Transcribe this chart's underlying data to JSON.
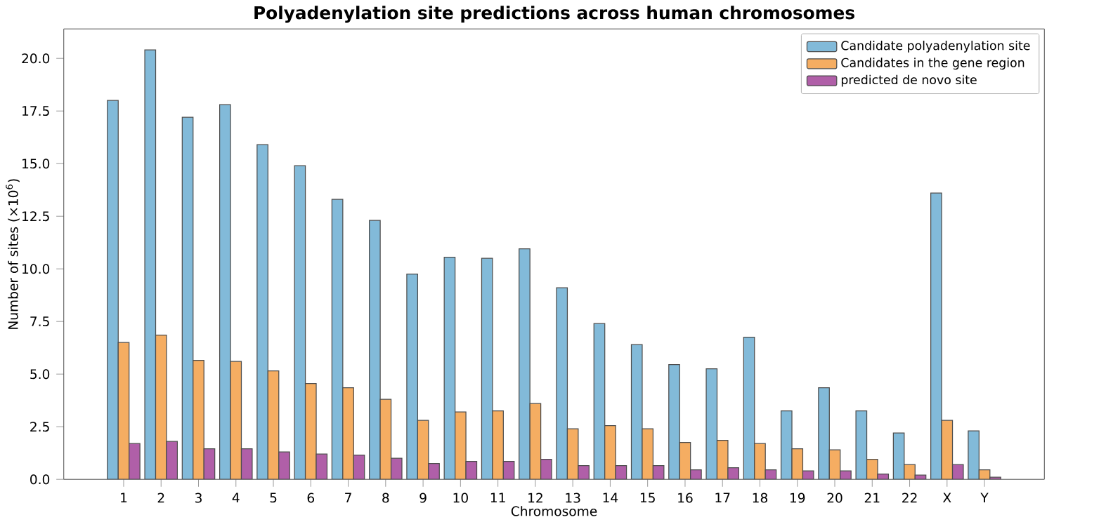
{
  "chart_data": {
    "type": "bar",
    "title": "Polyadenylation site predictions across human chromosomes",
    "xlabel": "Chromosome",
    "ylabel": "Number of sites (×10$^{6}$)",
    "categories": [
      "1",
      "2",
      "3",
      "4",
      "5",
      "6",
      "7",
      "8",
      "9",
      "10",
      "11",
      "12",
      "13",
      "14",
      "15",
      "16",
      "17",
      "18",
      "19",
      "20",
      "21",
      "22",
      "X",
      "Y"
    ],
    "series": [
      {
        "name": "Candidate polyadenylation site",
        "color": "#82bad9",
        "values": [
          18.0,
          20.4,
          17.2,
          17.8,
          15.9,
          14.9,
          13.3,
          12.3,
          9.75,
          10.55,
          10.5,
          10.95,
          9.1,
          7.4,
          6.4,
          5.45,
          5.25,
          6.75,
          3.25,
          4.35,
          3.25,
          2.2,
          13.6,
          2.3
        ]
      },
      {
        "name": "Candidates in the gene region",
        "color": "#f5ad62",
        "values": [
          6.5,
          6.85,
          5.65,
          5.6,
          5.15,
          4.55,
          4.35,
          3.8,
          2.8,
          3.2,
          3.25,
          3.6,
          2.4,
          2.55,
          2.4,
          1.75,
          1.85,
          1.7,
          1.45,
          1.4,
          0.95,
          0.7,
          2.8,
          0.45
        ]
      },
      {
        "name": "predicted de novo site",
        "color": "#b05fa8",
        "values": [
          1.7,
          1.8,
          1.45,
          1.45,
          1.3,
          1.2,
          1.15,
          1.0,
          0.75,
          0.85,
          0.85,
          0.95,
          0.65,
          0.65,
          0.65,
          0.45,
          0.55,
          0.45,
          0.4,
          0.4,
          0.25,
          0.2,
          0.7,
          0.1
        ]
      }
    ],
    "ylim": [
      0,
      21.4
    ],
    "yticks": [
      {
        "value": 0,
        "label": "0.0"
      },
      {
        "value": 2.5,
        "label": "2.5"
      },
      {
        "value": 5,
        "label": "5.0"
      },
      {
        "value": 7.5,
        "label": "7.5"
      },
      {
        "value": 10,
        "label": "10.0"
      },
      {
        "value": 12.5,
        "label": "12.5"
      },
      {
        "value": 15,
        "label": "15.0"
      },
      {
        "value": 17.5,
        "label": "17.5"
      },
      {
        "value": 20,
        "label": "20.0"
      }
    ],
    "grid": false,
    "legend": "top right"
  }
}
